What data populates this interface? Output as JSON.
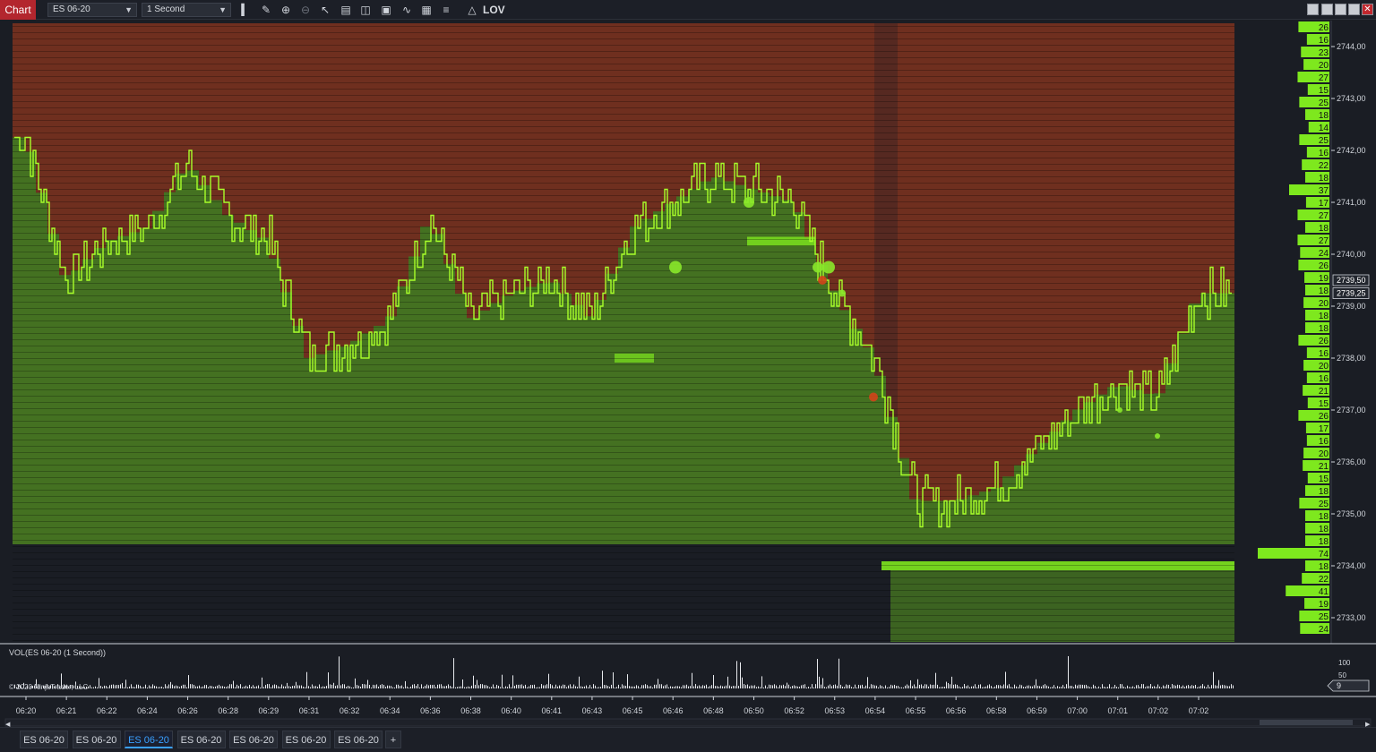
{
  "toolbar": {
    "chart_tab": "Chart",
    "instrument": "ES 06-20",
    "interval": "1 Second",
    "tools": [
      "bar-chart-icon",
      "pencil-icon",
      "zoom-in-icon",
      "zoom-out-icon",
      "pointer-icon",
      "page-icon",
      "layout-icon",
      "fit-icon",
      "indicator-icon",
      "strategy-icon",
      "list-icon"
    ],
    "strategy_label": "LOV"
  },
  "window_controls": [
    "minimize",
    "tile",
    "restore",
    "maximize",
    "close"
  ],
  "chart": {
    "price_ticks": [
      "2744,00",
      "2743,00",
      "2742,00",
      "2741,00",
      "2740,00",
      "2739,00",
      "2738,00",
      "2737,00",
      "2736,00",
      "2735,00",
      "2734,00",
      "2733,00"
    ],
    "current_prices": [
      "2739,50",
      "2739,25"
    ],
    "time_ticks": [
      "06:20",
      "06:21",
      "06:22",
      "06:24",
      "06:26",
      "06:28",
      "06:29",
      "06:31",
      "06:32",
      "06:34",
      "06:36",
      "06:38",
      "06:40",
      "06:41",
      "06:43",
      "06:45",
      "06:46",
      "06:48",
      "06:50",
      "06:52",
      "06:53",
      "06:54",
      "06:55",
      "06:56",
      "06:58",
      "06:59",
      "07:00",
      "07:01",
      "07:02",
      "07:02"
    ],
    "dom_sizes": [
      "26",
      "16",
      "23",
      "20",
      "27",
      "15",
      "25",
      "18",
      "14",
      "25",
      "16",
      "22",
      "18",
      "37",
      "17",
      "27",
      "18",
      "27",
      "24",
      "26",
      "19",
      "18",
      "20",
      "18",
      "18",
      "26",
      "16",
      "20",
      "16",
      "21",
      "15",
      "26",
      "17",
      "16",
      "20",
      "21",
      "15",
      "18",
      "25",
      "18",
      "18",
      "18",
      "74",
      "18",
      "22",
      "41",
      "19",
      "25",
      "24"
    ],
    "dom_max": 74,
    "colors": {
      "bid": "#7ee81e",
      "ask": "#d2441a",
      "price_line": "#a8ff2a",
      "background": "#1a1d24"
    }
  },
  "volume_panel": {
    "label": "VOL(ES 06-20 (1 Second))",
    "scale": [
      "100",
      "50"
    ],
    "last_value": "9",
    "copyright": "© 2020 NinjaTrader, LLC"
  },
  "chart_data": {
    "type": "line",
    "title": "",
    "ylim": [
      2732.5,
      2744.5
    ],
    "x": [
      "06:20",
      "06:21",
      "06:22",
      "06:24",
      "06:26",
      "06:28",
      "06:29",
      "06:31",
      "06:32",
      "06:34",
      "06:36",
      "06:38",
      "06:40",
      "06:41",
      "06:43",
      "06:45",
      "06:46",
      "06:48",
      "06:50",
      "06:52",
      "06:53",
      "06:54",
      "06:55",
      "06:56",
      "06:58",
      "06:59",
      "07:00",
      "07:01",
      "07:02",
      "07:02"
    ],
    "series": [
      {
        "values": [
          2742.25,
          2739.5,
          2740.25,
          2740.5,
          2741.75,
          2740.75,
          2740.25,
          2738.0,
          2738.25,
          2738.75,
          2740.75,
          2738.75,
          2739.25,
          2739.5,
          2738.75,
          2740.5,
          2741.0,
          2741.5,
          2741.25,
          2741.0,
          2739.25,
          2738.0,
          2735.25,
          2735.25,
          2735.5,
          2736.25,
          2737.0,
          2737.5,
          2737.25,
          2739.25
        ]
      }
    ]
  },
  "tabs": [
    "ES 06-20",
    "ES 06-20",
    "ES 06-20",
    "ES 06-20",
    "ES 06-20",
    "ES 06-20",
    "ES 06-20"
  ],
  "active_tab": 2,
  "add_tab": "+"
}
